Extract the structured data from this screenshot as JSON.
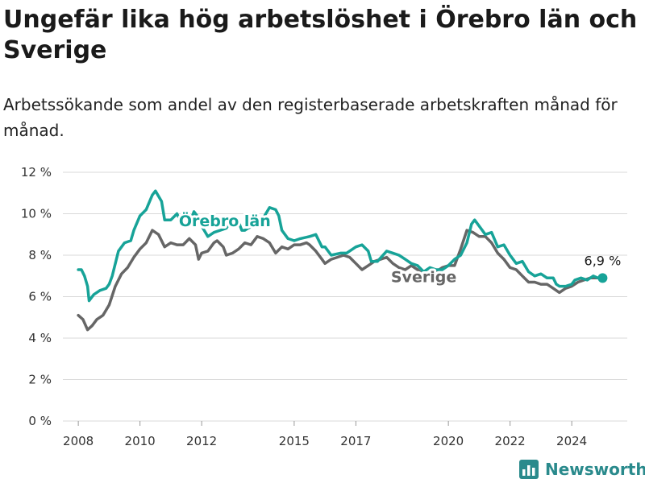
{
  "title": "Ungefär lika hög arbetslöshet i Örebro län och Sverige",
  "subtitle": "Arbetssökande som andel av den registerbaserade arbetskraften månad för månad.",
  "brand": {
    "name": "Newsworthy",
    "icon": "bar-chart-logo-icon"
  },
  "colors": {
    "orebro": "#17a398",
    "sverige": "#666666",
    "grid": "#d9d9d9",
    "text": "#333333"
  },
  "chart_data": {
    "type": "line",
    "xlim": [
      2007.5,
      2025.8
    ],
    "ylim": [
      0,
      12
    ],
    "x_ticks": [
      {
        "value": 2008,
        "label": "2008"
      },
      {
        "value": 2010,
        "label": "2010"
      },
      {
        "value": 2012,
        "label": "2012"
      },
      {
        "value": 2015,
        "label": "2015"
      },
      {
        "value": 2017,
        "label": "2017"
      },
      {
        "value": 2020,
        "label": "2020"
      },
      {
        "value": 2022,
        "label": "2022"
      },
      {
        "value": 2024,
        "label": "2024"
      }
    ],
    "y_ticks": [
      {
        "value": 0,
        "label": "0 %"
      },
      {
        "value": 2,
        "label": "2 %"
      },
      {
        "value": 4,
        "label": "4 %"
      },
      {
        "value": 6,
        "label": "6 %"
      },
      {
        "value": 8,
        "label": "8 %"
      },
      {
        "value": 10,
        "label": "10 %"
      },
      {
        "value": 12,
        "label": "12 %"
      }
    ],
    "end_label": "6,9 %",
    "series": [
      {
        "name": "Örebro län",
        "key": "orebro",
        "label_position": [
          2012.75,
          9.4
        ],
        "points": [
          [
            2008.0,
            7.3
          ],
          [
            2008.1,
            7.3
          ],
          [
            2008.2,
            7.0
          ],
          [
            2008.3,
            6.5
          ],
          [
            2008.35,
            5.8
          ],
          [
            2008.5,
            6.1
          ],
          [
            2008.7,
            6.3
          ],
          [
            2008.9,
            6.4
          ],
          [
            2009.0,
            6.6
          ],
          [
            2009.1,
            7.0
          ],
          [
            2009.3,
            8.2
          ],
          [
            2009.5,
            8.6
          ],
          [
            2009.7,
            8.7
          ],
          [
            2009.8,
            9.2
          ],
          [
            2010.0,
            9.9
          ],
          [
            2010.2,
            10.2
          ],
          [
            2010.4,
            10.9
          ],
          [
            2010.5,
            11.1
          ],
          [
            2010.7,
            10.6
          ],
          [
            2010.8,
            9.7
          ],
          [
            2011.0,
            9.7
          ],
          [
            2011.2,
            10.0
          ],
          [
            2011.4,
            9.4
          ],
          [
            2011.6,
            9.5
          ],
          [
            2011.75,
            10.1
          ],
          [
            2011.9,
            9.8
          ],
          [
            2012.0,
            9.4
          ],
          [
            2012.2,
            8.9
          ],
          [
            2012.4,
            9.1
          ],
          [
            2012.6,
            9.2
          ],
          [
            2012.8,
            9.3
          ],
          [
            2013.0,
            9.8
          ],
          [
            2013.2,
            9.6
          ],
          [
            2013.3,
            9.2
          ],
          [
            2013.4,
            9.2
          ],
          [
            2013.5,
            9.3
          ],
          [
            2013.8,
            9.5
          ],
          [
            2014.0,
            9.8
          ],
          [
            2014.2,
            10.3
          ],
          [
            2014.4,
            10.2
          ],
          [
            2014.5,
            9.9
          ],
          [
            2014.6,
            9.2
          ],
          [
            2014.8,
            8.8
          ],
          [
            2015.0,
            8.7
          ],
          [
            2015.2,
            8.8
          ],
          [
            2015.5,
            8.9
          ],
          [
            2015.7,
            9.0
          ],
          [
            2015.9,
            8.4
          ],
          [
            2016.0,
            8.4
          ],
          [
            2016.2,
            8.0
          ],
          [
            2016.5,
            8.1
          ],
          [
            2016.7,
            8.1
          ],
          [
            2017.0,
            8.4
          ],
          [
            2017.2,
            8.5
          ],
          [
            2017.4,
            8.2
          ],
          [
            2017.5,
            7.7
          ],
          [
            2017.7,
            7.7
          ],
          [
            2018.0,
            8.2
          ],
          [
            2018.2,
            8.1
          ],
          [
            2018.4,
            8.0
          ],
          [
            2018.6,
            7.8
          ],
          [
            2018.8,
            7.6
          ],
          [
            2019.0,
            7.5
          ],
          [
            2019.2,
            7.2
          ],
          [
            2019.4,
            7.4
          ],
          [
            2019.6,
            7.3
          ],
          [
            2019.8,
            7.3
          ],
          [
            2020.0,
            7.5
          ],
          [
            2020.2,
            7.8
          ],
          [
            2020.4,
            8.0
          ],
          [
            2020.6,
            8.6
          ],
          [
            2020.75,
            9.5
          ],
          [
            2020.85,
            9.7
          ],
          [
            2021.0,
            9.4
          ],
          [
            2021.2,
            9.0
          ],
          [
            2021.4,
            9.1
          ],
          [
            2021.6,
            8.4
          ],
          [
            2021.8,
            8.5
          ],
          [
            2022.0,
            8.0
          ],
          [
            2022.2,
            7.6
          ],
          [
            2022.4,
            7.7
          ],
          [
            2022.6,
            7.2
          ],
          [
            2022.8,
            7.0
          ],
          [
            2023.0,
            7.1
          ],
          [
            2023.2,
            6.9
          ],
          [
            2023.4,
            6.9
          ],
          [
            2023.5,
            6.6
          ],
          [
            2023.6,
            6.5
          ],
          [
            2023.8,
            6.5
          ],
          [
            2024.0,
            6.6
          ],
          [
            2024.1,
            6.8
          ],
          [
            2024.3,
            6.9
          ],
          [
            2024.5,
            6.8
          ],
          [
            2024.7,
            7.0
          ],
          [
            2024.85,
            6.9
          ],
          [
            2025.0,
            6.9
          ]
        ]
      },
      {
        "name": "Sverige",
        "key": "sverige",
        "label_position": [
          2019.2,
          6.7
        ],
        "points": [
          [
            2008.0,
            5.1
          ],
          [
            2008.15,
            4.9
          ],
          [
            2008.3,
            4.4
          ],
          [
            2008.45,
            4.6
          ],
          [
            2008.6,
            4.9
          ],
          [
            2008.8,
            5.1
          ],
          [
            2009.0,
            5.6
          ],
          [
            2009.2,
            6.5
          ],
          [
            2009.4,
            7.1
          ],
          [
            2009.6,
            7.4
          ],
          [
            2009.8,
            7.9
          ],
          [
            2010.0,
            8.3
          ],
          [
            2010.2,
            8.6
          ],
          [
            2010.4,
            9.2
          ],
          [
            2010.6,
            9.0
          ],
          [
            2010.8,
            8.4
          ],
          [
            2011.0,
            8.6
          ],
          [
            2011.2,
            8.5
          ],
          [
            2011.4,
            8.5
          ],
          [
            2011.6,
            8.8
          ],
          [
            2011.8,
            8.5
          ],
          [
            2011.9,
            7.8
          ],
          [
            2012.0,
            8.1
          ],
          [
            2012.2,
            8.2
          ],
          [
            2012.4,
            8.6
          ],
          [
            2012.5,
            8.7
          ],
          [
            2012.7,
            8.4
          ],
          [
            2012.8,
            8.0
          ],
          [
            2013.0,
            8.1
          ],
          [
            2013.2,
            8.3
          ],
          [
            2013.4,
            8.6
          ],
          [
            2013.6,
            8.5
          ],
          [
            2013.8,
            8.9
          ],
          [
            2014.0,
            8.8
          ],
          [
            2014.2,
            8.6
          ],
          [
            2014.4,
            8.1
          ],
          [
            2014.6,
            8.4
          ],
          [
            2014.8,
            8.3
          ],
          [
            2015.0,
            8.5
          ],
          [
            2015.2,
            8.5
          ],
          [
            2015.4,
            8.6
          ],
          [
            2015.5,
            8.5
          ],
          [
            2015.7,
            8.2
          ],
          [
            2015.9,
            7.8
          ],
          [
            2016.0,
            7.6
          ],
          [
            2016.2,
            7.8
          ],
          [
            2016.4,
            7.9
          ],
          [
            2016.6,
            8.0
          ],
          [
            2016.8,
            7.9
          ],
          [
            2017.0,
            7.6
          ],
          [
            2017.2,
            7.3
          ],
          [
            2017.4,
            7.5
          ],
          [
            2017.6,
            7.7
          ],
          [
            2017.8,
            7.8
          ],
          [
            2018.0,
            7.9
          ],
          [
            2018.2,
            7.6
          ],
          [
            2018.4,
            7.4
          ],
          [
            2018.6,
            7.3
          ],
          [
            2018.8,
            7.5
          ],
          [
            2019.0,
            7.3
          ],
          [
            2019.2,
            7.0
          ],
          [
            2019.4,
            7.1
          ],
          [
            2019.6,
            7.2
          ],
          [
            2019.8,
            7.4
          ],
          [
            2020.0,
            7.5
          ],
          [
            2020.2,
            7.5
          ],
          [
            2020.4,
            8.3
          ],
          [
            2020.6,
            9.2
          ],
          [
            2020.8,
            9.1
          ],
          [
            2021.0,
            8.9
          ],
          [
            2021.2,
            8.9
          ],
          [
            2021.4,
            8.6
          ],
          [
            2021.6,
            8.1
          ],
          [
            2021.8,
            7.8
          ],
          [
            2022.0,
            7.4
          ],
          [
            2022.2,
            7.3
          ],
          [
            2022.4,
            7.0
          ],
          [
            2022.6,
            6.7
          ],
          [
            2022.8,
            6.7
          ],
          [
            2023.0,
            6.6
          ],
          [
            2023.2,
            6.6
          ],
          [
            2023.4,
            6.4
          ],
          [
            2023.6,
            6.2
          ],
          [
            2023.8,
            6.4
          ],
          [
            2024.0,
            6.5
          ],
          [
            2024.2,
            6.7
          ],
          [
            2024.4,
            6.8
          ],
          [
            2024.6,
            6.9
          ],
          [
            2024.8,
            6.9
          ],
          [
            2025.0,
            6.9
          ]
        ]
      }
    ]
  }
}
